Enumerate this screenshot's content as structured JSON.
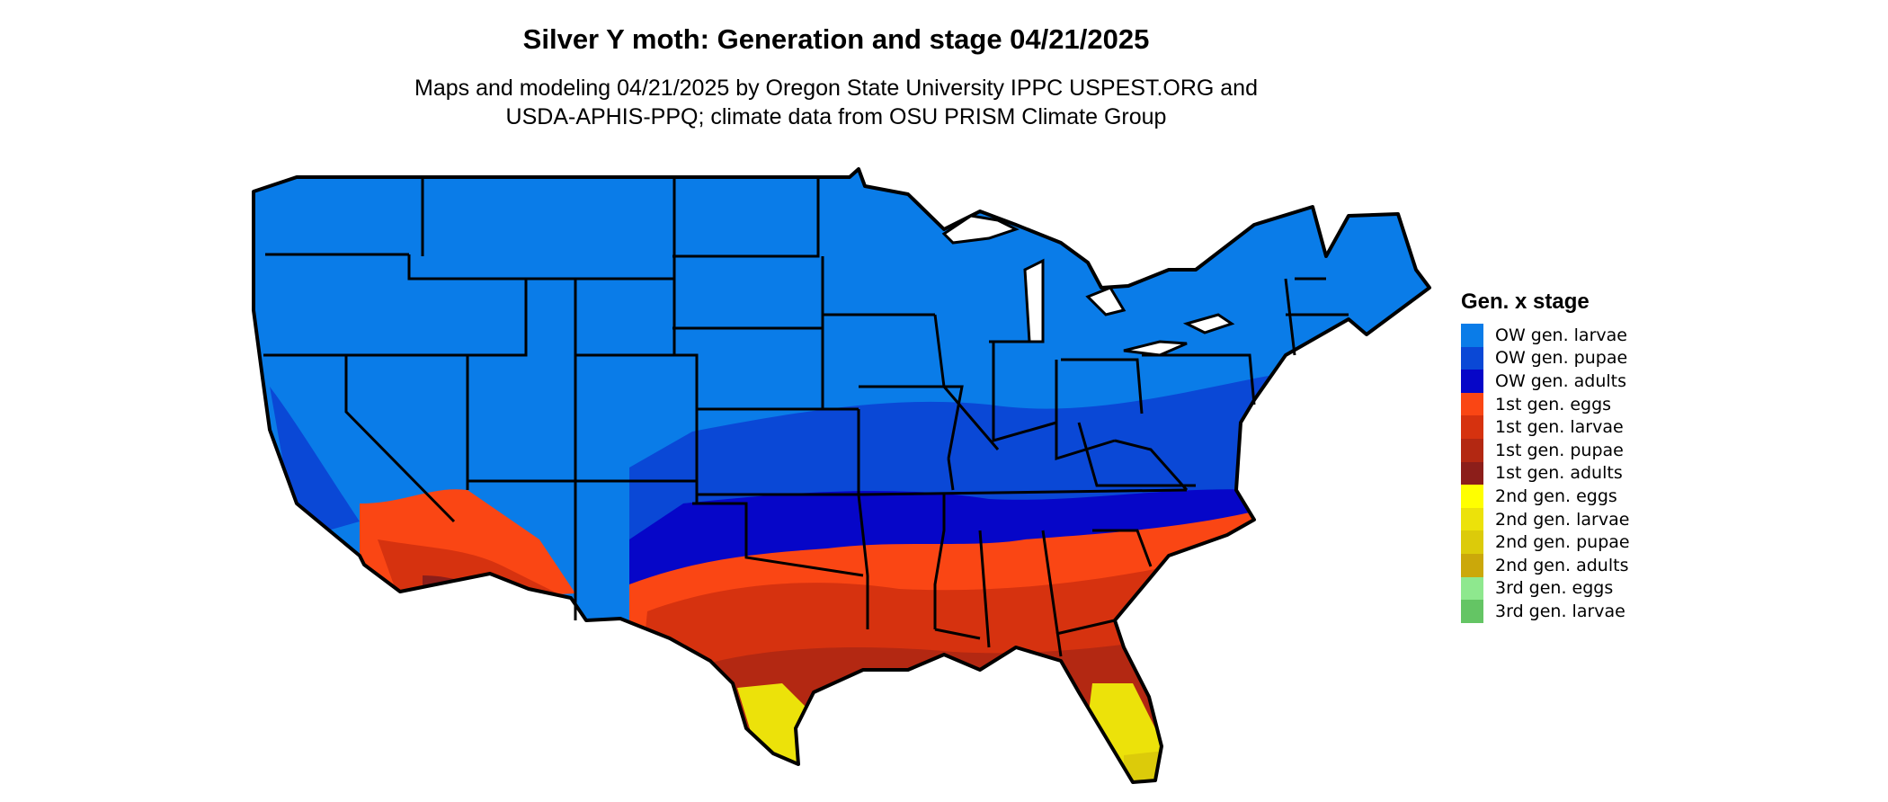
{
  "title": "Silver Y moth: Generation and stage 04/21/2025",
  "subtitle_line1": "Maps and modeling 04/21/2025 by Oregon State University IPPC USPEST.ORG and",
  "subtitle_line2": "USDA-APHIS-PPQ; climate data from OSU PRISM Climate Group",
  "legend": {
    "title": "Gen. x stage",
    "items": [
      {
        "label": "OW gen. larvae",
        "color": "#0a7ce8"
      },
      {
        "label": "OW gen. pupae",
        "color": "#0a48d6"
      },
      {
        "label": "OW gen. adults",
        "color": "#0606c8"
      },
      {
        "label": "1st gen. eggs",
        "color": "#fa4614"
      },
      {
        "label": "1st gen. larvae",
        "color": "#d6320f"
      },
      {
        "label": "1st gen. pupae",
        "color": "#b32812"
      },
      {
        "label": "1st gen. adults",
        "color": "#8c1e1a"
      },
      {
        "label": "2nd gen. eggs",
        "color": "#ffff00"
      },
      {
        "label": "2nd gen. larvae",
        "color": "#ece20a"
      },
      {
        "label": "2nd gen. pupae",
        "color": "#dccb0a"
      },
      {
        "label": "2nd gen. adults",
        "color": "#cba80a"
      },
      {
        "label": "3rd gen. eggs",
        "color": "#8ee88e"
      },
      {
        "label": "3rd gen. larvae",
        "color": "#64c564"
      }
    ]
  }
}
